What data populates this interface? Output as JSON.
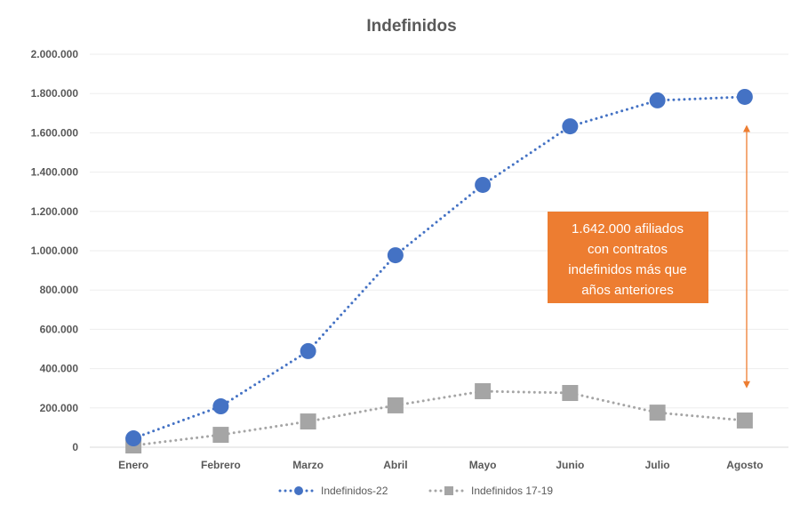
{
  "chart_data": {
    "type": "line",
    "title": "Indefinidos",
    "xlabel": "",
    "ylabel": "",
    "categories": [
      "Enero",
      "Febrero",
      "Marzo",
      "Abril",
      "Mayo",
      "Junio",
      "Julio",
      "Agosto"
    ],
    "ylim": [
      0,
      2000000
    ],
    "yticks": [
      0,
      200000,
      400000,
      600000,
      800000,
      1000000,
      1200000,
      1400000,
      1600000,
      1800000,
      2000000
    ],
    "ytick_labels": [
      "0",
      "200.000",
      "400.000",
      "600.000",
      "800.000",
      "1.000.000",
      "1.200.000",
      "1.400.000",
      "1.600.000",
      "1.800.000",
      "2.000.000"
    ],
    "grid": true,
    "legend_position": "bottom",
    "series": [
      {
        "name": "Indefinidos-22",
        "color": "#4472C4",
        "marker": "circle",
        "line_style": "dotted",
        "values": [
          45000,
          208000,
          489000,
          977000,
          1335000,
          1633000,
          1765000,
          1783000
        ]
      },
      {
        "name": "Indefinidos 17-19",
        "color": "#A5A5A5",
        "marker": "square",
        "line_style": "dotted",
        "values": [
          9000,
          63000,
          131000,
          213000,
          285000,
          276000,
          176000,
          136000
        ]
      }
    ],
    "annotation": {
      "lines": [
        "1.642.000 afiliados",
        "con contratos",
        "indefinidos más que",
        "años anteriores"
      ],
      "color": "#ED7D31",
      "arrow_range": [
        1640000,
        300000
      ]
    }
  }
}
